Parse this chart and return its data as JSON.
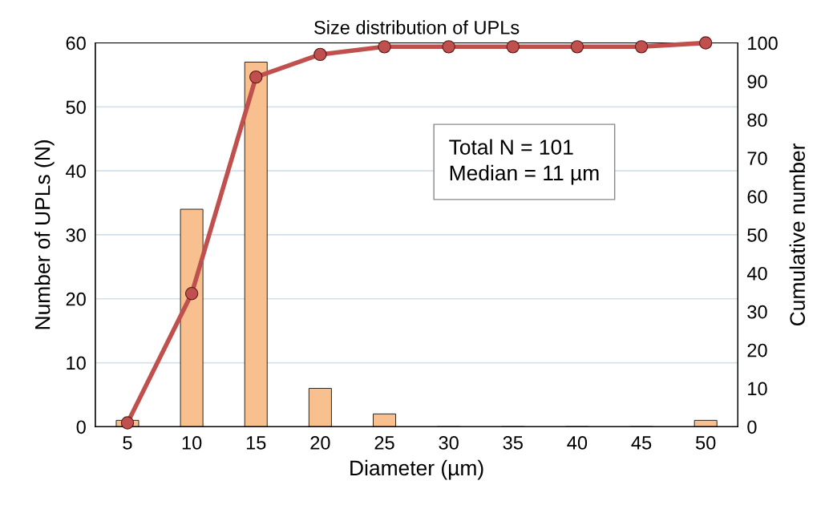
{
  "chart_data": {
    "type": "bar",
    "title": "Size distribution of UPLs",
    "xlabel": "Diameter (µm)",
    "ylabel": "Number of UPLs (N)",
    "y2label": "Cumulative number",
    "categories": [
      "5",
      "10",
      "15",
      "20",
      "25",
      "30",
      "35",
      "40",
      "45",
      "50"
    ],
    "series": [
      {
        "color": "#f9c08f",
        "values": [
          1,
          34,
          57,
          6,
          2,
          0,
          0,
          0,
          0,
          1
        ]
      },
      {
        "type": "line",
        "axis": "y2",
        "color": "#c0504d",
        "values": [
          1,
          34.7,
          91.1,
          97.0,
          99.0,
          99.0,
          99.0,
          99.0,
          99.0,
          100
        ]
      }
    ],
    "ylim": [
      0,
      60
    ],
    "yticks": [
      0,
      10,
      20,
      30,
      40,
      50,
      60
    ],
    "y2lim": [
      0,
      100
    ],
    "y2ticks": [
      0,
      10,
      20,
      30,
      40,
      50,
      60,
      70,
      80,
      90,
      100
    ],
    "annotations": [
      "Total N = 101\nMedian = 11 µm"
    ],
    "grid": "y",
    "marker": "circle",
    "line_style": "solid"
  }
}
